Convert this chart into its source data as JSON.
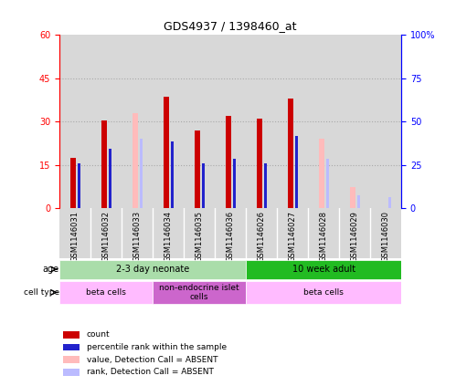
{
  "title": "GDS4937 / 1398460_at",
  "samples": [
    "GSM1146031",
    "GSM1146032",
    "GSM1146033",
    "GSM1146034",
    "GSM1146035",
    "GSM1146036",
    "GSM1146026",
    "GSM1146027",
    "GSM1146028",
    "GSM1146029",
    "GSM1146030"
  ],
  "count_values": [
    17.5,
    30.5,
    0,
    38.5,
    27.0,
    32.0,
    31.0,
    38.0,
    0,
    0,
    0
  ],
  "count_absent_values": [
    0,
    0,
    33.0,
    0,
    0,
    0,
    0,
    0,
    24.0,
    7.5,
    0
  ],
  "rank_values": [
    15.5,
    20.5,
    0,
    23.0,
    15.5,
    17.0,
    15.5,
    25.0,
    0,
    0,
    0
  ],
  "rank_absent_values": [
    0,
    0,
    24.0,
    0,
    0,
    0,
    0,
    0,
    17.0,
    4.5,
    4.0
  ],
  "ylim_left": [
    0,
    60
  ],
  "ylim_right": [
    0,
    100
  ],
  "yticks_left": [
    0,
    15,
    30,
    45,
    60
  ],
  "yticks_right": [
    0,
    25,
    50,
    75,
    100
  ],
  "yticklabels_right": [
    "0",
    "25",
    "50",
    "75",
    "100%"
  ],
  "color_count": "#cc0000",
  "color_rank": "#2222cc",
  "color_count_absent": "#ffbbbb",
  "color_rank_absent": "#bbbbff",
  "age_groups": [
    {
      "label": "2-3 day neonate",
      "start": 0,
      "end": 6,
      "color": "#aaddaa"
    },
    {
      "label": "10 week adult",
      "start": 6,
      "end": 11,
      "color": "#22bb22"
    }
  ],
  "cell_type_groups": [
    {
      "label": "beta cells",
      "start": 0,
      "end": 3,
      "color": "#ffbbff"
    },
    {
      "label": "non-endocrine islet\ncells",
      "start": 3,
      "end": 6,
      "color": "#cc66cc"
    },
    {
      "label": "beta cells",
      "start": 6,
      "end": 11,
      "color": "#ffbbff"
    }
  ],
  "legend_items": [
    {
      "label": "count",
      "color": "#cc0000"
    },
    {
      "label": "percentile rank within the sample",
      "color": "#2222cc"
    },
    {
      "label": "value, Detection Call = ABSENT",
      "color": "#ffbbbb"
    },
    {
      "label": "rank, Detection Call = ABSENT",
      "color": "#bbbbff"
    }
  ],
  "red_bar_width": 0.18,
  "blue_bar_width": 0.08,
  "col_bg_color": "#d8d8d8"
}
